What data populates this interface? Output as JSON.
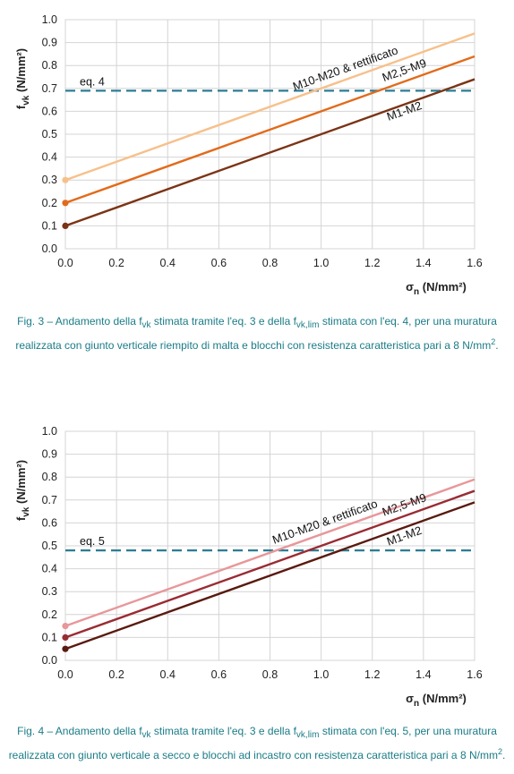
{
  "chart_data": [
    {
      "type": "line",
      "xlabel": "σ",
      "xlabel_sub": "n",
      "xlabel_unit": " (N/mm²)",
      "ylabel": "f",
      "ylabel_sub": "vk",
      "ylabel_unit": " (N/mm²)",
      "xlim": [
        0,
        1.6
      ],
      "ylim": [
        0,
        1.0
      ],
      "x_ticks": [
        "0.0",
        "0.2",
        "0.4",
        "0.6",
        "0.8",
        "1.0",
        "1.2",
        "1.4",
        "1.6"
      ],
      "y_ticks": [
        "0.0",
        "0.1",
        "0.2",
        "0.3",
        "0.4",
        "0.5",
        "0.6",
        "0.7",
        "0.8",
        "0.9",
        "1.0"
      ],
      "grid": true,
      "series": [
        {
          "name": "M10-M20 & rettificato",
          "x": [
            0,
            1.6
          ],
          "y": [
            0.3,
            0.94
          ],
          "color": "#f7c08a"
        },
        {
          "name": "M2,5-M9",
          "x": [
            0,
            1.6
          ],
          "y": [
            0.2,
            0.84
          ],
          "color": "#e26b1b"
        },
        {
          "name": "M1-M2",
          "x": [
            0,
            1.6
          ],
          "y": [
            0.1,
            0.74
          ],
          "color": "#7b3415"
        }
      ],
      "reference_line": {
        "name": "eq. 4",
        "y": 0.69,
        "color": "#2a7d95"
      }
    },
    {
      "type": "line",
      "xlabel": "σ",
      "xlabel_sub": "n",
      "xlabel_unit": " (N/mm²)",
      "ylabel": "f",
      "ylabel_sub": "vk",
      "ylabel_unit": " (N/mm²)",
      "xlim": [
        0,
        1.6
      ],
      "ylim": [
        0,
        1.0
      ],
      "x_ticks": [
        "0.0",
        "0.2",
        "0.4",
        "0.6",
        "0.8",
        "1.0",
        "1.2",
        "1.4",
        "1.6"
      ],
      "y_ticks": [
        "0.0",
        "0.1",
        "0.2",
        "0.3",
        "0.4",
        "0.5",
        "0.6",
        "0.7",
        "0.8",
        "0.9",
        "1.0"
      ],
      "grid": true,
      "series": [
        {
          "name": "M10-M20 & rettificato",
          "x": [
            0,
            1.6
          ],
          "y": [
            0.15,
            0.79
          ],
          "color": "#e8979a"
        },
        {
          "name": "M2,5-M9",
          "x": [
            0,
            1.6
          ],
          "y": [
            0.1,
            0.74
          ],
          "color": "#9a2b33"
        },
        {
          "name": "M1-M2",
          "x": [
            0,
            1.6
          ],
          "y": [
            0.05,
            0.69
          ],
          "color": "#5a1a10"
        }
      ],
      "reference_line": {
        "name": "eq. 5",
        "y": 0.48,
        "color": "#2a7d95"
      }
    }
  ],
  "captions": {
    "fig3": {
      "p1": "Fig. 3 – Andamento della f",
      "s1": "vk",
      "p2": " stimata tramite l'eq. 3 e della f",
      "s2": "vk,lim",
      "p3": " stimata con l'eq. 4, per una muratura realizzata con giunto verticale riempito di malta e blocchi con resistenza caratteristica pari a 8 N/mm",
      "sup": "2",
      "p4": "."
    },
    "fig4": {
      "p1": "Fig. 4 – Andamento della f",
      "s1": "vk",
      "p2": " stimata tramite l'eq. 3 e della f",
      "s2": "vk,lim",
      "p3": " stimata con l'eq. 5, per una muratura realizzata con giunto verticale a secco e blocchi ad incastro con resistenza caratteristica pari a 8 N/mm",
      "sup": "2",
      "p4": "."
    }
  }
}
